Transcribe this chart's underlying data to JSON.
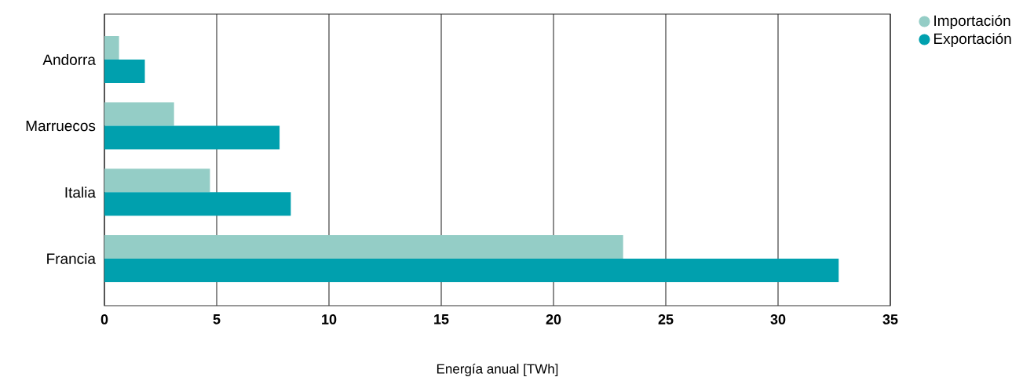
{
  "chart_data": {
    "type": "bar",
    "orientation": "horizontal",
    "xlabel": "Energía anual [TWh]",
    "categories": [
      "Andorra",
      "Marruecos",
      "Italia",
      "Francia"
    ],
    "series": [
      {
        "name": "Importación",
        "color": "#94cdc6",
        "values": [
          0.65,
          3.1,
          4.7,
          23.1
        ]
      },
      {
        "name": "Exportación",
        "color": "#00a0ae",
        "values": [
          1.8,
          7.8,
          8.3,
          32.7
        ]
      }
    ],
    "xlim": [
      0,
      35
    ],
    "xticks": [
      0,
      5,
      10,
      15,
      20,
      25,
      30,
      35
    ],
    "grid": "x",
    "legend": "top right"
  }
}
